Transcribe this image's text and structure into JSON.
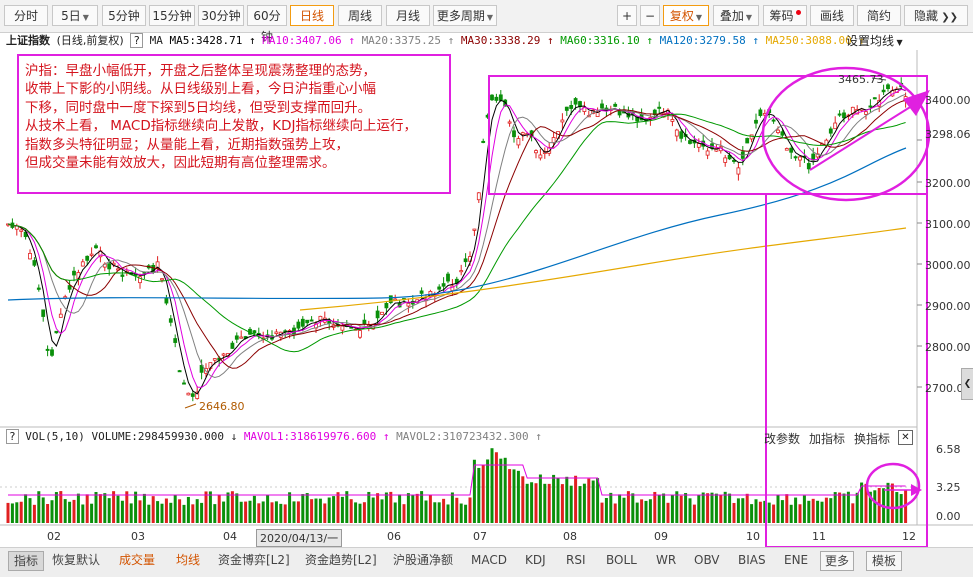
{
  "toolbar": {
    "periods": [
      "分时",
      "5日",
      "5分钟",
      "15分钟",
      "30分钟",
      "60分钟",
      "日线",
      "周线",
      "月线",
      "更多周期"
    ],
    "active_period": "日线",
    "fuquan": "复权",
    "right": [
      "叠加",
      "筹码",
      "画线",
      "简约",
      "隐藏"
    ],
    "plus": "+",
    "minus": "−"
  },
  "ma_line": {
    "title": "上证指数",
    "mode": "(日线,前复权)",
    "help": "?",
    "ma": "MA",
    "ma5": "MA5:3428.71",
    "ma10": "MA10:3407.06",
    "ma20": "MA20:3375.25",
    "ma30": "MA30:3338.29",
    "ma60": "MA60:3316.10",
    "ma120": "MA120:3279.58",
    "ma250": "MA250:3088.00",
    "settings": "设置均线"
  },
  "annotation": {
    "lines": [
      "沪指：早盘小幅低开，开盘之后整体呈现震荡整理的态势，",
      "收带上下影的小阴线。从日线级别上看，今日沪指重心小幅",
      "下移，同时盘中一度下探到5日均线，但受到支撑而回升。",
      "从技术上看， MACD指标继续向上发散，KDJ指标继续向上运行，",
      "指数多头特征明显；从量能上看，近期指数强势上攻，",
      "但成交量未能有效放大，因此短期有高位整理需求。"
    ]
  },
  "price_axis": [
    "3400.00",
    "3298.06",
    "3200.00",
    "3100.00",
    "3000.00",
    "2900.00",
    "2800.00",
    "2700.00"
  ],
  "high_label": "3465.73",
  "low_label": "2646.80",
  "vol_line": {
    "help": "?",
    "name": "VOL(5,10)",
    "volume": "VOLUME:298459930.000",
    "mavol1": "MAVOL1:318619976.600",
    "mavol2": "MAVOL2:310723432.300"
  },
  "vol_buttons": [
    "改参数",
    "加指标",
    "换指标"
  ],
  "vol_axis": [
    "6.58",
    "3.25",
    "0.00"
  ],
  "x_axis": [
    "02",
    "03",
    "04",
    "2020/04/13/一",
    "06",
    "07",
    "08",
    "09",
    "10",
    "11",
    "12"
  ],
  "bottom": {
    "left": [
      "指标",
      "恢复默认",
      "成交量",
      "均线",
      "资金博弈[L2]",
      "资金趋势[L2]",
      "沪股通净额"
    ],
    "right": [
      "MACD",
      "KDJ",
      "RSI",
      "BOLL",
      "WR",
      "OBV",
      "BIAS",
      "ENE",
      "更多",
      "模板"
    ]
  },
  "colors": {
    "ma5": "#000000",
    "ma10": "#e000e0",
    "ma20": "#808080",
    "ma30": "#8b0000",
    "ma60": "#009900",
    "ma120": "#0070c0",
    "ma250": "#e5a800",
    "up": "#e02020",
    "down": "#0a8f0a",
    "annotation": "#e020e0"
  },
  "icons": {
    "close": "close-icon",
    "arrow_up": "arrow-up-icon",
    "arrow_down": "arrow-down-icon"
  }
}
